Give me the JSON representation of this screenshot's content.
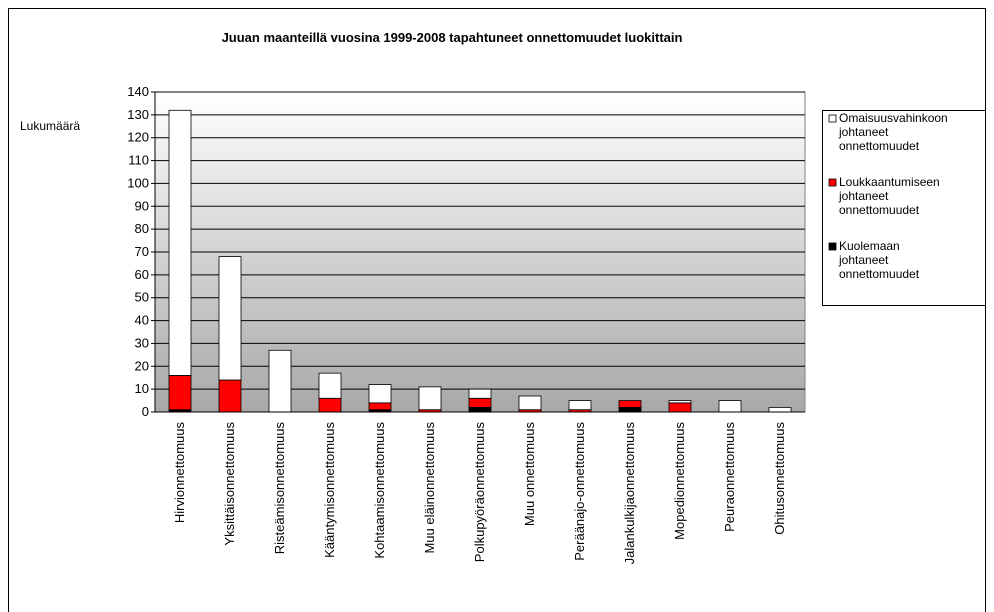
{
  "chart_data": {
    "type": "bar",
    "stacked": true,
    "title": "Juuan maanteillä vuosina 1999-2008  tapahtuneet  onnettomuudet luokittain",
    "ylabel": "Lukumäärä",
    "categories": [
      "Hirvionnettomuus",
      "Yksittäisonnettomuus",
      "Risteämisonnettomuus",
      "Kääntymisonnettomuus",
      "Kohtaamisonnettomuus",
      "Muu eläinonnettomuus",
      "Polkupyöräonnettomuus",
      "Muu onnettomuus",
      "Peräänajo-onnettomuus",
      "Jalankulkijaonnettomuus",
      "Mopedionnettomuus",
      "Peuraonnettomuus",
      "Ohitusonnettomuus"
    ],
    "series": [
      {
        "name": "Kuolemaan johtaneet onnettomuudet",
        "color": "#000000",
        "values": [
          1,
          0,
          0,
          0,
          1,
          0,
          2,
          0,
          0,
          2,
          0,
          0,
          0
        ]
      },
      {
        "name": "Loukkaantumiseen johtaneet onnettomuudet",
        "color": "#ff0000",
        "values": [
          15,
          14,
          0,
          6,
          3,
          1,
          4,
          1,
          1,
          3,
          4,
          0,
          0
        ]
      },
      {
        "name": "Omaisuusvahinkoon johtaneet onnettomuudet",
        "color": "#ffffff",
        "values": [
          116,
          54,
          27,
          11,
          8,
          10,
          4,
          6,
          4,
          0,
          1,
          5,
          2
        ]
      }
    ],
    "ylim": [
      0,
      140
    ],
    "yticks": [
      0,
      10,
      20,
      30,
      40,
      50,
      60,
      70,
      80,
      90,
      100,
      110,
      120,
      130,
      140
    ],
    "grid": true,
    "legend": "right"
  }
}
